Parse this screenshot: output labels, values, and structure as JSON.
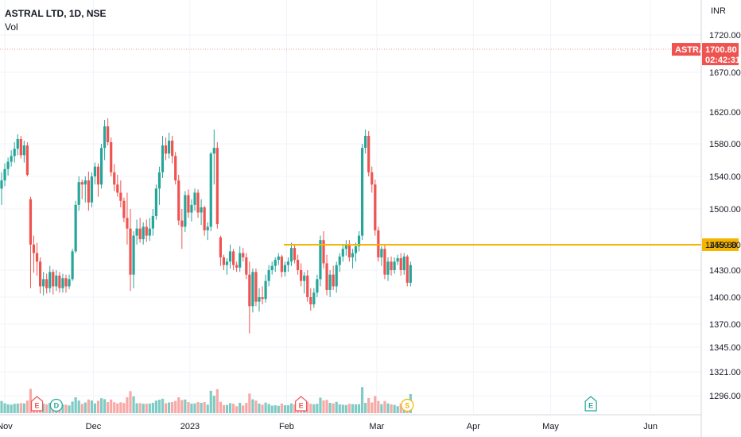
{
  "header": {
    "symbol": "ASTRAL LTD, 1D, NSE",
    "volume_label": "Vol"
  },
  "price_axis": {
    "currency_label": "INR"
  },
  "last_price_tag": {
    "symbol": "ASTRAL",
    "price": "1700.80",
    "countdown": "02:42:31",
    "color": "#ef5350"
  },
  "support_line": {
    "price": 1459.8,
    "label": "1459.80",
    "color": "#f5b400"
  },
  "colors": {
    "up": "#26a69a",
    "down": "#ef5350",
    "up_vol": "#80cbc4",
    "down_vol": "#f7a9a7"
  },
  "events": [
    {
      "label": "E",
      "kind": "earnings",
      "day_index": 11
    },
    {
      "label": "D",
      "kind": "dividend",
      "day_index": 17
    },
    {
      "label": "E",
      "kind": "earnings",
      "day_index": 93
    },
    {
      "label": "S",
      "kind": "split",
      "day_index": 126
    },
    {
      "label": "E",
      "kind": "earnings",
      "day_index": 183
    }
  ],
  "chart_data": {
    "type": "candlestick",
    "title": "ASTRAL LTD, 1D, NSE",
    "y_unit": "INR",
    "ylim": [
      1280,
      1745
    ],
    "y_ticks": [
      1296,
      1321,
      1345,
      1370,
      1400,
      1430,
      1459.8,
      1500,
      1540,
      1580,
      1620,
      1670,
      1720
    ],
    "y_tick_labels": [
      "1296.00",
      "1321.00",
      "1345.00",
      "1370.00",
      "1400.00",
      "1430.00",
      "1459.80",
      "1500.00",
      "1540.00",
      "1580.00",
      "1620.00",
      "1670.00",
      "1720.00"
    ],
    "x_labels": [
      {
        "label": "Nov",
        "day_index": 0
      },
      {
        "label": "Dec",
        "day_index": 29
      },
      {
        "label": "2023",
        "day_index": 59
      },
      {
        "label": "Feb",
        "day_index": 89
      },
      {
        "label": "Mar",
        "day_index": 117
      },
      {
        "label": "Apr",
        "day_index": 147
      },
      {
        "label": "May",
        "day_index": 171
      },
      {
        "label": "Jun",
        "day_index": 202
      }
    ],
    "grid": true,
    "legend": "top-left",
    "annotation_lines": [
      {
        "price": 1459.8,
        "label": "1459.80"
      }
    ],
    "last": {
      "price": 1700.8,
      "label": "1700.80"
    },
    "candles": [
      [
        0,
        1525,
        1545,
        1505,
        1535
      ],
      [
        1,
        1535,
        1556,
        1528,
        1549
      ],
      [
        2,
        1549,
        1563,
        1541,
        1558
      ],
      [
        3,
        1558,
        1572,
        1552,
        1565
      ],
      [
        4,
        1565,
        1582,
        1557,
        1574
      ],
      [
        5,
        1574,
        1592,
        1566,
        1586
      ],
      [
        6,
        1586,
        1590,
        1562,
        1566
      ],
      [
        7,
        1566,
        1584,
        1557,
        1578
      ],
      [
        8,
        1578,
        1582,
        1540,
        1542
      ],
      [
        9,
        1512,
        1515,
        1410,
        1460
      ],
      [
        10,
        1460,
        1470,
        1427,
        1450
      ],
      [
        11,
        1450,
        1462,
        1424,
        1440
      ],
      [
        12,
        1440,
        1445,
        1404,
        1412
      ],
      [
        13,
        1412,
        1428,
        1402,
        1420
      ],
      [
        14,
        1420,
        1426,
        1404,
        1410
      ],
      [
        15,
        1410,
        1435,
        1405,
        1428
      ],
      [
        16,
        1428,
        1431,
        1403,
        1412
      ],
      [
        17,
        1412,
        1430,
        1407,
        1424
      ],
      [
        18,
        1424,
        1428,
        1405,
        1410
      ],
      [
        19,
        1410,
        1426,
        1405,
        1421
      ],
      [
        20,
        1421,
        1425,
        1405,
        1412
      ],
      [
        21,
        1412,
        1425,
        1409,
        1420
      ],
      [
        22,
        1420,
        1455,
        1418,
        1452
      ],
      [
        23,
        1452,
        1510,
        1450,
        1505
      ],
      [
        24,
        1505,
        1540,
        1498,
        1533
      ],
      [
        25,
        1533,
        1536,
        1512,
        1530
      ],
      [
        26,
        1530,
        1540,
        1508,
        1535
      ],
      [
        27,
        1535,
        1546,
        1498,
        1508
      ],
      [
        28,
        1508,
        1545,
        1502,
        1540
      ],
      [
        29,
        1540,
        1557,
        1530,
        1552
      ],
      [
        30,
        1552,
        1556,
        1515,
        1530
      ],
      [
        31,
        1530,
        1580,
        1525,
        1575
      ],
      [
        32,
        1575,
        1610,
        1560,
        1602
      ],
      [
        33,
        1602,
        1612,
        1578,
        1582
      ],
      [
        34,
        1582,
        1588,
        1540,
        1545
      ],
      [
        35,
        1545,
        1555,
        1522,
        1530
      ],
      [
        36,
        1530,
        1542,
        1515,
        1520
      ],
      [
        37,
        1520,
        1535,
        1502,
        1510
      ],
      [
        38,
        1510,
        1514,
        1485,
        1490
      ],
      [
        39,
        1490,
        1520,
        1460,
        1478
      ],
      [
        40,
        1478,
        1500,
        1407,
        1425
      ],
      [
        41,
        1425,
        1475,
        1410,
        1470
      ],
      [
        42,
        1470,
        1488,
        1460,
        1478
      ],
      [
        43,
        1478,
        1490,
        1462,
        1466
      ],
      [
        44,
        1466,
        1485,
        1460,
        1480
      ],
      [
        45,
        1480,
        1488,
        1463,
        1470
      ],
      [
        46,
        1470,
        1490,
        1464,
        1478
      ],
      [
        47,
        1478,
        1500,
        1470,
        1492
      ],
      [
        48,
        1492,
        1530,
        1488,
        1525
      ],
      [
        49,
        1525,
        1552,
        1505,
        1545
      ],
      [
        50,
        1545,
        1590,
        1538,
        1578
      ],
      [
        51,
        1578,
        1588,
        1560,
        1568
      ],
      [
        52,
        1568,
        1594,
        1562,
        1584
      ],
      [
        53,
        1584,
        1590,
        1556,
        1565
      ],
      [
        54,
        1565,
        1570,
        1530,
        1535
      ],
      [
        55,
        1535,
        1542,
        1482,
        1487
      ],
      [
        56,
        1487,
        1500,
        1455,
        1480
      ],
      [
        57,
        1480,
        1522,
        1474,
        1517
      ],
      [
        58,
        1517,
        1524,
        1490,
        1496
      ],
      [
        59,
        1496,
        1512,
        1486,
        1505
      ],
      [
        60,
        1505,
        1525,
        1498,
        1520
      ],
      [
        61,
        1520,
        1524,
        1490,
        1496
      ],
      [
        62,
        1496,
        1512,
        1482,
        1502
      ],
      [
        63,
        1502,
        1504,
        1470,
        1476
      ],
      [
        64,
        1476,
        1485,
        1465,
        1480
      ],
      [
        65,
        1480,
        1570,
        1475,
        1568
      ],
      [
        66,
        1568,
        1598,
        1530,
        1575
      ],
      [
        67,
        1575,
        1582,
        1478,
        1483
      ],
      [
        68,
        1468,
        1470,
        1435,
        1445
      ],
      [
        69,
        1445,
        1448,
        1430,
        1436
      ],
      [
        70,
        1436,
        1444,
        1425,
        1440
      ],
      [
        71,
        1440,
        1460,
        1432,
        1452
      ],
      [
        72,
        1452,
        1455,
        1430,
        1436
      ],
      [
        73,
        1436,
        1440,
        1428,
        1433
      ],
      [
        74,
        1433,
        1458,
        1428,
        1450
      ],
      [
        75,
        1450,
        1456,
        1440,
        1445
      ],
      [
        76,
        1445,
        1450,
        1420,
        1425
      ],
      [
        77,
        1425,
        1440,
        1360,
        1390
      ],
      [
        78,
        1390,
        1432,
        1383,
        1428
      ],
      [
        79,
        1428,
        1432,
        1390,
        1395
      ],
      [
        80,
        1395,
        1410,
        1384,
        1400
      ],
      [
        81,
        1400,
        1412,
        1392,
        1398
      ],
      [
        82,
        1398,
        1425,
        1394,
        1418
      ],
      [
        83,
        1418,
        1436,
        1412,
        1430
      ],
      [
        84,
        1430,
        1440,
        1425,
        1435
      ],
      [
        85,
        1435,
        1445,
        1428,
        1442
      ],
      [
        86,
        1442,
        1450,
        1436,
        1446
      ],
      [
        87,
        1446,
        1448,
        1422,
        1428
      ],
      [
        88,
        1428,
        1440,
        1423,
        1436
      ],
      [
        89,
        1436,
        1445,
        1428,
        1440
      ],
      [
        90,
        1440,
        1462,
        1435,
        1456
      ],
      [
        91,
        1456,
        1460,
        1438,
        1442
      ],
      [
        92,
        1442,
        1448,
        1425,
        1430
      ],
      [
        93,
        1430,
        1438,
        1412,
        1418
      ],
      [
        94,
        1418,
        1428,
        1404,
        1424
      ],
      [
        95,
        1424,
        1430,
        1395,
        1400
      ],
      [
        96,
        1400,
        1410,
        1385,
        1392
      ],
      [
        97,
        1392,
        1410,
        1388,
        1405
      ],
      [
        98,
        1405,
        1425,
        1400,
        1420
      ],
      [
        99,
        1420,
        1470,
        1412,
        1465
      ],
      [
        100,
        1465,
        1475,
        1432,
        1438
      ],
      [
        101,
        1438,
        1448,
        1402,
        1408
      ],
      [
        102,
        1408,
        1430,
        1400,
        1425
      ],
      [
        103,
        1425,
        1435,
        1408,
        1412
      ],
      [
        104,
        1412,
        1440,
        1405,
        1436
      ],
      [
        105,
        1436,
        1450,
        1428,
        1446
      ],
      [
        106,
        1446,
        1460,
        1440,
        1455
      ],
      [
        107,
        1455,
        1465,
        1447,
        1460
      ],
      [
        108,
        1460,
        1465,
        1440,
        1445
      ],
      [
        109,
        1445,
        1455,
        1432,
        1450
      ],
      [
        110,
        1450,
        1462,
        1440,
        1458
      ],
      [
        111,
        1458,
        1475,
        1452,
        1470
      ],
      [
        112,
        1470,
        1580,
        1465,
        1575
      ],
      [
        113,
        1575,
        1598,
        1568,
        1590
      ],
      [
        114,
        1590,
        1596,
        1540,
        1545
      ],
      [
        115,
        1545,
        1552,
        1520,
        1530
      ],
      [
        116,
        1530,
        1536,
        1470,
        1476
      ],
      [
        117,
        1476,
        1480,
        1440,
        1445
      ],
      [
        118,
        1445,
        1458,
        1435,
        1455
      ],
      [
        119,
        1455,
        1460,
        1420,
        1425
      ],
      [
        120,
        1425,
        1445,
        1418,
        1440
      ],
      [
        121,
        1440,
        1446,
        1424,
        1430
      ],
      [
        122,
        1430,
        1445,
        1426,
        1440
      ],
      [
        123,
        1440,
        1448,
        1436,
        1444
      ],
      [
        124,
        1444,
        1450,
        1424,
        1430
      ],
      [
        125,
        1430,
        1450,
        1425,
        1446
      ],
      [
        126,
        1446,
        1448,
        1412,
        1416
      ],
      [
        127,
        1416,
        1440,
        1412,
        1436
      ]
    ],
    "volume_bars": "one bar per session along the bottom strip; tallest bar on the final May earnings session"
  }
}
